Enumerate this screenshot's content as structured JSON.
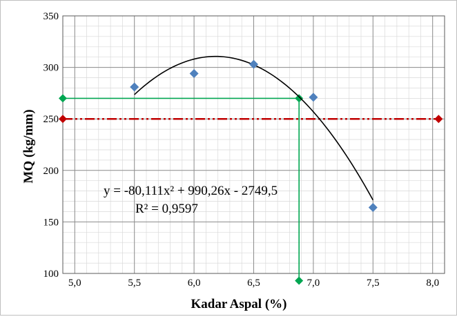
{
  "chart_data": {
    "type": "scatter",
    "xlabel": "Kadar Aspal (%)",
    "ylabel": "MQ (kg/mm)",
    "xlim": [
      4.9,
      8.1
    ],
    "ylim": [
      100,
      350
    ],
    "x_ticks": [
      5.0,
      5.5,
      6.0,
      6.5,
      7.0,
      7.5,
      8.0
    ],
    "x_tick_labels": [
      "5,0",
      "5,5",
      "6,0",
      "6,5",
      "7,0",
      "7,5",
      "8,0"
    ],
    "y_ticks": [
      100,
      150,
      200,
      250,
      300,
      350
    ],
    "y_tick_labels": [
      "100",
      "150",
      "200",
      "250",
      "300",
      "350"
    ],
    "grid": true,
    "series": [
      {
        "marker": "diamond",
        "color": "#4f81bd",
        "points": [
          {
            "x": 5.5,
            "y": 281
          },
          {
            "x": 6.0,
            "y": 294
          },
          {
            "x": 6.5,
            "y": 303
          },
          {
            "x": 7.0,
            "y": 271
          },
          {
            "x": 7.5,
            "y": 164
          }
        ]
      }
    ],
    "trendline": {
      "type": "polynomial",
      "coefficients": [
        -80.111,
        990.26,
        -2749.5
      ],
      "x_range": [
        5.5,
        7.5
      ],
      "color": "#000000",
      "equation_label": "y = -80,111x² + 990,26x - 2749,5",
      "r2_label": "R² = 0,9597"
    },
    "reference_lines": [
      {
        "kind": "horizontal",
        "y": 250,
        "x_range": [
          4.9,
          8.05
        ],
        "color": "#c00000",
        "style": "dash-dot-dot",
        "marker_color": "#c00000"
      },
      {
        "kind": "horizontal",
        "y": 270,
        "x_range": [
          4.9,
          6.88
        ],
        "color": "#00a651",
        "style": "solid",
        "marker_color": "#00a651"
      },
      {
        "kind": "vertical",
        "x": 6.88,
        "y_range": [
          270,
          93
        ],
        "color": "#00a651",
        "style": "solid",
        "marker_color": "#00a651"
      }
    ]
  }
}
